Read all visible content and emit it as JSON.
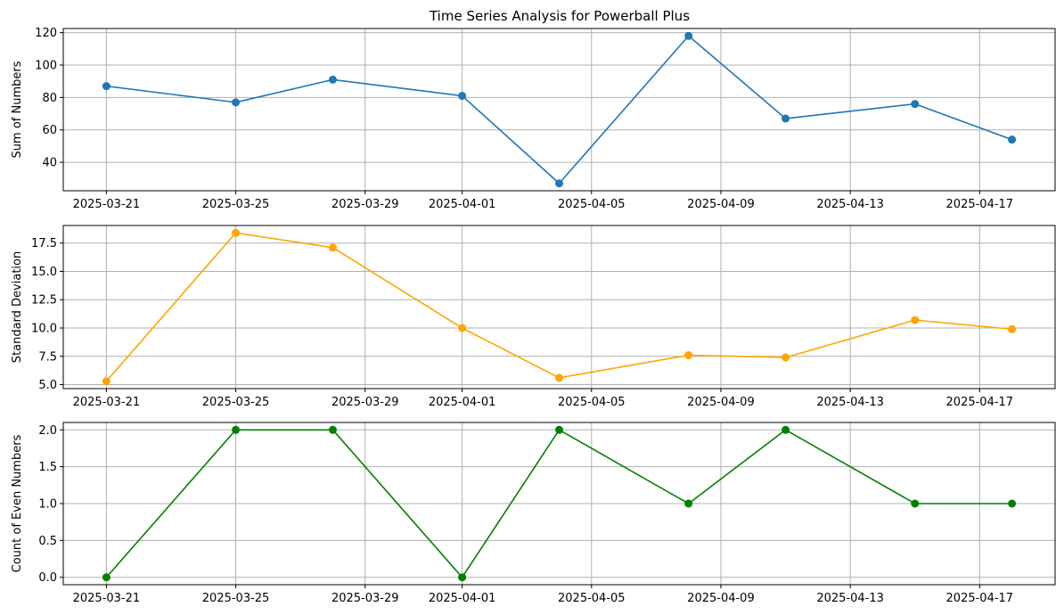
{
  "figure": {
    "title": "Time Series Analysis for Powerball Plus"
  },
  "chart_data": [
    {
      "type": "line",
      "title": "Time Series Analysis for Powerball Plus",
      "xlabel": "",
      "ylabel": "Sum of Numbers",
      "color": "#1f77b4",
      "x": [
        "2025-03-21",
        "2025-03-25",
        "2025-03-28",
        "2025-04-01",
        "2025-04-04",
        "2025-04-08",
        "2025-04-11",
        "2025-04-15",
        "2025-04-18"
      ],
      "values": [
        87,
        77,
        91,
        81,
        27,
        118,
        67,
        76,
        54
      ],
      "xlim": [
        "2025-03-19 16:00",
        "2025-04-19 08:00"
      ],
      "ylim": [
        22.45,
        122.55
      ],
      "xticks": [
        "2025-03-21",
        "2025-03-25",
        "2025-03-29",
        "2025-04-01",
        "2025-04-05",
        "2025-04-09",
        "2025-04-13",
        "2025-04-17"
      ],
      "yticks": [
        40,
        60,
        80,
        100,
        120
      ],
      "ytick_labels": [
        "40",
        "60",
        "80",
        "100",
        "120"
      ],
      "grid": true
    },
    {
      "type": "line",
      "title": "",
      "xlabel": "",
      "ylabel": "Standard Deviation",
      "color": "#ffa500",
      "x": [
        "2025-03-21",
        "2025-03-25",
        "2025-03-28",
        "2025-04-01",
        "2025-04-04",
        "2025-04-08",
        "2025-04-11",
        "2025-04-15",
        "2025-04-18"
      ],
      "values": [
        5.3,
        18.4,
        17.1,
        10.0,
        5.6,
        7.6,
        7.4,
        10.7,
        9.9
      ],
      "xlim": [
        "2025-03-19 16:00",
        "2025-04-19 08:00"
      ],
      "ylim": [
        4.65,
        19.05
      ],
      "xticks": [
        "2025-03-21",
        "2025-03-25",
        "2025-03-29",
        "2025-04-01",
        "2025-04-05",
        "2025-04-09",
        "2025-04-13",
        "2025-04-17"
      ],
      "yticks": [
        5.0,
        7.5,
        10.0,
        12.5,
        15.0,
        17.5
      ],
      "ytick_labels": [
        "5.0",
        "7.5",
        "10.0",
        "12.5",
        "15.0",
        "17.5"
      ],
      "grid": true
    },
    {
      "type": "line",
      "title": "",
      "xlabel": "",
      "ylabel": "Count of Even Numbers",
      "color": "#008000",
      "x": [
        "2025-03-21",
        "2025-03-25",
        "2025-03-28",
        "2025-04-01",
        "2025-04-04",
        "2025-04-08",
        "2025-04-11",
        "2025-04-15",
        "2025-04-18"
      ],
      "values": [
        0,
        2,
        2,
        0,
        2,
        1,
        2,
        1,
        1
      ],
      "xlim": [
        "2025-03-19 16:00",
        "2025-04-19 08:00"
      ],
      "ylim": [
        -0.1,
        2.1
      ],
      "xticks": [
        "2025-03-21",
        "2025-03-25",
        "2025-03-29",
        "2025-04-01",
        "2025-04-05",
        "2025-04-09",
        "2025-04-13",
        "2025-04-17"
      ],
      "yticks": [
        0.0,
        0.5,
        1.0,
        1.5,
        2.0
      ],
      "ytick_labels": [
        "0.0",
        "0.5",
        "1.0",
        "1.5",
        "2.0"
      ],
      "grid": true
    }
  ]
}
